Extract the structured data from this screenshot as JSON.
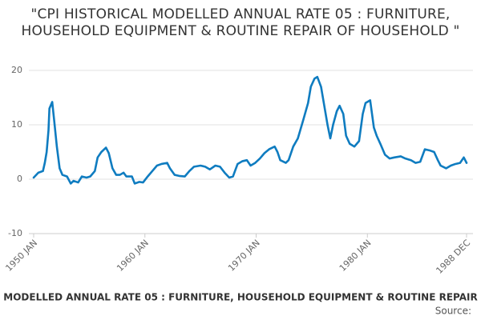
{
  "chart_data": {
    "type": "line",
    "title": "\"CPI HISTORICAL MODELLED ANNUAL RATE 05 : FURNITURE, HOUSEHOLD EQUIPMENT & ROUTINE REPAIR OF HOUSEHOLD \"",
    "source": "Source:",
    "legend": "bottom",
    "grid": true,
    "ylim": [
      -10,
      20
    ],
    "yticks": [
      -10,
      0,
      10,
      20
    ],
    "xlim": [
      "1950-01",
      "1988-12"
    ],
    "xticks": [
      {
        "value": "1950-01",
        "label": "1950 JAN"
      },
      {
        "value": "1960-01",
        "label": "1960 JAN"
      },
      {
        "value": "1970-01",
        "label": "1970 JAN"
      },
      {
        "value": "1980-01",
        "label": "1980 JAN"
      },
      {
        "value": "1988-12",
        "label": "1988 DEC"
      }
    ],
    "x": [
      "1950-01",
      "1950-06",
      "1950-11",
      "1951-01",
      "1951-03",
      "1951-05",
      "1951-06",
      "1951-09",
      "1951-11",
      "1952-02",
      "1952-05",
      "1952-08",
      "1953-01",
      "1953-05",
      "1953-08",
      "1954-01",
      "1954-05",
      "1954-10",
      "1955-02",
      "1955-07",
      "1955-10",
      "1956-02",
      "1956-07",
      "1956-10",
      "1957-02",
      "1957-06",
      "1957-10",
      "1958-02",
      "1958-05",
      "1958-11",
      "1959-02",
      "1959-07",
      "1959-11",
      "1960-04",
      "1960-09",
      "1961-02",
      "1961-07",
      "1962-01",
      "1962-04",
      "1962-09",
      "1963-02",
      "1963-08",
      "1964-01",
      "1964-06",
      "1965-01",
      "1965-06",
      "1965-11",
      "1966-05",
      "1966-10",
      "1967-03",
      "1967-08",
      "1967-12",
      "1968-05",
      "1968-10",
      "1969-03",
      "1969-07",
      "1969-12",
      "1970-05",
      "1970-10",
      "1971-03",
      "1971-09",
      "1971-12",
      "1972-03",
      "1972-09",
      "1972-12",
      "1973-05",
      "1973-10",
      "1974-04",
      "1974-09",
      "1974-12",
      "1975-04",
      "1975-07",
      "1975-11",
      "1976-02",
      "1976-06",
      "1976-09",
      "1976-12",
      "1977-04",
      "1977-07",
      "1977-11",
      "1978-02",
      "1978-06",
      "1978-11",
      "1979-04",
      "1979-08",
      "1979-11",
      "1980-04",
      "1980-08",
      "1980-11",
      "1981-03",
      "1981-08",
      "1982-01",
      "1982-06",
      "1983-01",
      "1983-06",
      "1983-12",
      "1984-05",
      "1984-10",
      "1985-03",
      "1985-08",
      "1986-01",
      "1986-05",
      "1986-08",
      "1987-02",
      "1987-07",
      "1987-12",
      "1988-05",
      "1988-09",
      "1988-12"
    ],
    "series": [
      {
        "name": "CPI HISTORICAL MODELLED ANNUAL RATE 05 : FURNITURE, HOUSEHOLD EQUIPMENT & ROUTINE REPAIR OF HOUSEHOLD",
        "color": "#0f7cc0",
        "values": [
          0.3,
          1.2,
          1.5,
          3,
          5,
          9,
          13,
          14.2,
          11,
          6,
          2,
          0.8,
          0.5,
          -0.8,
          -0.3,
          -0.6,
          0.5,
          0.3,
          0.5,
          1.5,
          4,
          5,
          5.8,
          4.8,
          2,
          0.8,
          0.8,
          1.2,
          0.5,
          0.5,
          -0.8,
          -0.5,
          -0.6,
          0.5,
          1.5,
          2.5,
          2.8,
          3.0,
          2.0,
          0.8,
          0.6,
          0.5,
          1.5,
          2.3,
          2.5,
          2.3,
          1.8,
          2.5,
          2.3,
          1.2,
          0.3,
          0.5,
          2.8,
          3.3,
          3.5,
          2.5,
          3.0,
          3.8,
          4.8,
          5.5,
          6.0,
          5.0,
          3.5,
          3.0,
          3.5,
          6.0,
          7.5,
          11,
          14,
          17,
          18.5,
          18.8,
          17,
          14,
          10,
          7.5,
          10,
          12.5,
          13.5,
          12,
          8,
          6.5,
          6,
          7,
          12,
          14,
          14.5,
          9.5,
          8,
          6.5,
          4.5,
          3.8,
          4.0,
          4.2,
          3.8,
          3.5,
          3.0,
          3.2,
          5.5,
          5.3,
          5.0,
          3.5,
          2.5,
          2.0,
          2.5,
          2.8,
          3.0,
          4.0,
          3.0
        ]
      }
    ]
  }
}
